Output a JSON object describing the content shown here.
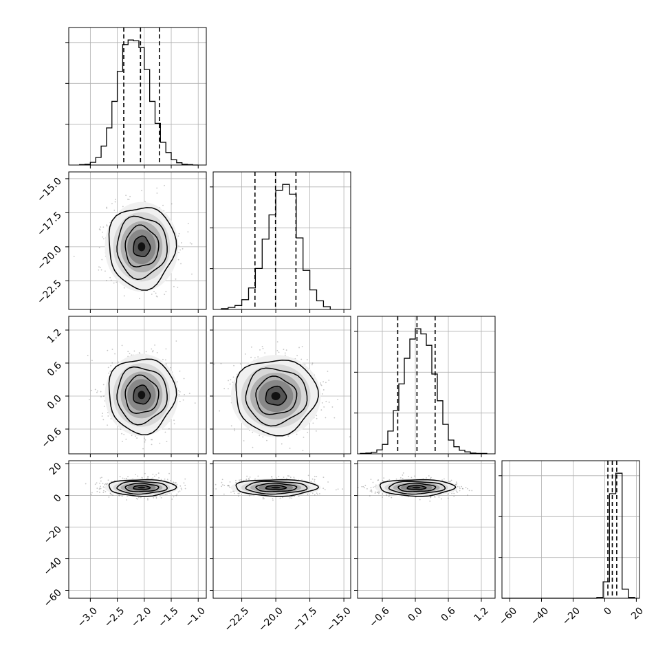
{
  "colors": {
    "ink": "#000000",
    "grid": "#b0b0b0",
    "background": "#ffffff"
  },
  "chart_data": {
    "type": "corner",
    "grid": true,
    "parameters": [
      {
        "index": 0,
        "range": [
          -3.4,
          -0.85
        ],
        "ticks": [
          -3.0,
          -2.5,
          -2.0,
          -1.5,
          -1.0
        ],
        "tick_labels": [
          "−3.0",
          "−2.5",
          "−2.0",
          "−1.5",
          "−1.0"
        ]
      },
      {
        "index": 1,
        "range": [
          -24.6,
          -14.5
        ],
        "ticks": [
          -22.5,
          -20.0,
          -17.5,
          -15.0
        ],
        "tick_labels": [
          "−22.5",
          "−20.0",
          "−17.5",
          "−15.0"
        ]
      },
      {
        "index": 2,
        "range": [
          -1.05,
          1.45
        ],
        "ticks": [
          -0.6,
          0.0,
          0.6,
          1.2
        ],
        "tick_labels": [
          "−0.6",
          "0.0",
          "0.6",
          "1.2"
        ]
      },
      {
        "index": 3,
        "range": [
          -65,
          22
        ],
        "ticks": [
          -60,
          -40,
          -20,
          0,
          20
        ],
        "tick_labels": [
          "−60",
          "−40",
          "−20",
          "0",
          "20"
        ]
      }
    ],
    "marginals": [
      {
        "param": 0,
        "bin_edges": [
          -3.2,
          -3.1,
          -3.0,
          -2.9,
          -2.8,
          -2.7,
          -2.6,
          -2.5,
          -2.4,
          -2.3,
          -2.2,
          -2.1,
          -2.0,
          -1.9,
          -1.8,
          -1.7,
          -1.6,
          -1.5,
          -1.4,
          -1.3,
          -1.2,
          -1.1,
          -1.0
        ],
        "counts": [
          1,
          2,
          7,
          20,
          50,
          98,
          168,
          247,
          318,
          330,
          328,
          310,
          252,
          168,
          110,
          60,
          33,
          14,
          6,
          2,
          1,
          0
        ],
        "quantiles": [
          -2.38,
          -2.07,
          -1.72
        ]
      },
      {
        "param": 1,
        "bin_edges": [
          -24.0,
          -23.5,
          -23.0,
          -22.5,
          -22.0,
          -21.5,
          -21.0,
          -20.5,
          -20.0,
          -19.5,
          -19.0,
          -18.5,
          -18.0,
          -17.5,
          -17.0,
          -16.5,
          -16.0
        ],
        "counts": [
          2,
          5,
          10,
          25,
          55,
          105,
          180,
          242,
          305,
          320,
          295,
          183,
          100,
          50,
          22,
          7
        ],
        "quantiles": [
          -21.53,
          -20.02,
          -18.52
        ]
      },
      {
        "param": 2,
        "bin_edges": [
          -1.0,
          -0.9,
          -0.8,
          -0.7,
          -0.6,
          -0.5,
          -0.4,
          -0.3,
          -0.2,
          -0.1,
          0.0,
          0.1,
          0.2,
          0.3,
          0.4,
          0.5,
          0.6,
          0.7,
          0.8,
          0.9,
          1.0,
          1.1,
          1.2,
          1.3
        ],
        "counts": [
          1,
          2,
          4,
          10,
          24,
          58,
          110,
          178,
          243,
          292,
          318,
          305,
          276,
          203,
          135,
          75,
          35,
          18,
          9,
          5,
          2,
          1,
          1
        ],
        "quantiles": [
          -0.32,
          0.03,
          0.36
        ]
      },
      {
        "param": 3,
        "bin_edges": [
          -65,
          -61,
          -57,
          -53,
          -49,
          -45,
          -41,
          -37,
          -33,
          -29,
          -25,
          -21,
          -17,
          -13,
          -9,
          -5,
          -1,
          3,
          7,
          11,
          15,
          19
        ],
        "counts": [
          0,
          0,
          0,
          0,
          0,
          0,
          0,
          0,
          0,
          0,
          0,
          0,
          0,
          0,
          0,
          2,
          40,
          255,
          305,
          22,
          2
        ],
        "quantiles": [
          2.0,
          4.8,
          7.6
        ]
      }
    ],
    "joint": [
      {
        "x_param": 0,
        "y_param": 1,
        "mean": [
          -2.05,
          -20.0
        ],
        "sigma": [
          0.31,
          1.5
        ],
        "rho": 0.0
      },
      {
        "x_param": 0,
        "y_param": 2,
        "mean": [
          -2.05,
          0.02
        ],
        "sigma": [
          0.31,
          0.34
        ],
        "rho": 0.0
      },
      {
        "x_param": 1,
        "y_param": 2,
        "mean": [
          -20.0,
          0.0
        ],
        "sigma": [
          1.5,
          0.34
        ],
        "rho": 0.0
      },
      {
        "x_param": 0,
        "y_param": 3,
        "mean": [
          -2.05,
          5.0
        ],
        "sigma": [
          0.31,
          2.6
        ],
        "rho": 0.0
      },
      {
        "x_param": 1,
        "y_param": 3,
        "mean": [
          -20.0,
          5.0
        ],
        "sigma": [
          1.5,
          2.6
        ],
        "rho": 0.0
      },
      {
        "x_param": 2,
        "y_param": 3,
        "mean": [
          0.02,
          5.0
        ],
        "sigma": [
          0.34,
          2.6
        ],
        "rho": 0.0
      }
    ],
    "contour_levels_sigma": [
      0.5,
      1.0,
      1.5,
      2.0
    ]
  }
}
